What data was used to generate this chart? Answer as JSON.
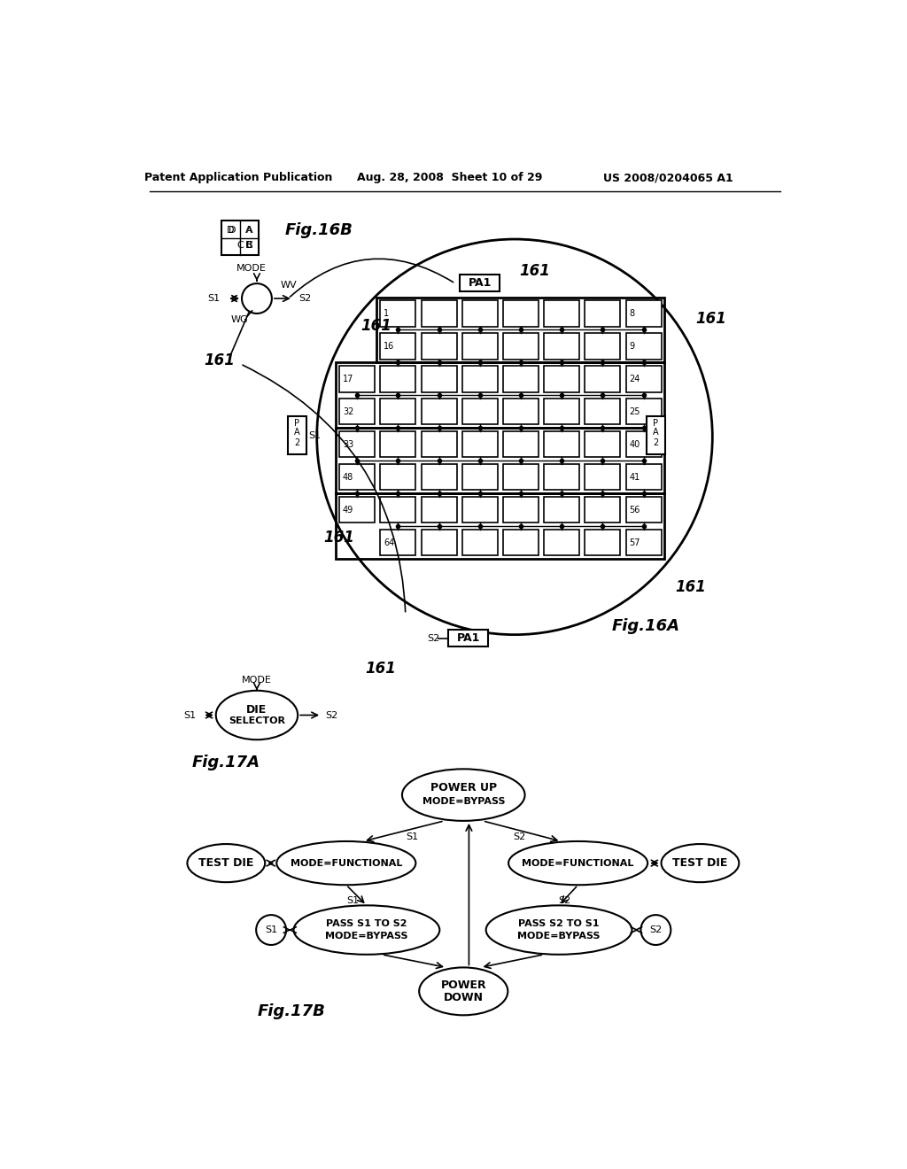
{
  "header_left": "Patent Application Publication",
  "header_mid": "Aug. 28, 2008  Sheet 10 of 29",
  "header_right": "US 2008/0204065 A1",
  "fig16b_label": "Fig.16B",
  "fig16a_label": "Fig.16A",
  "fig17a_label": "Fig.17A",
  "fig17b_label": "Fig.17B",
  "bg_color": "#ffffff"
}
